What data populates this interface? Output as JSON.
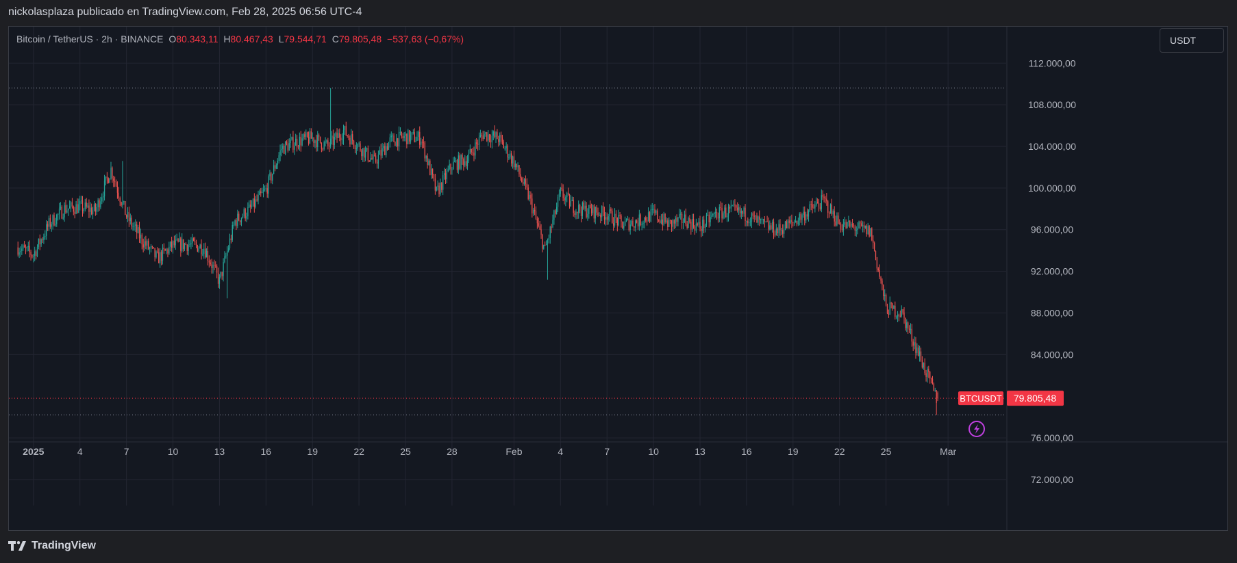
{
  "caption": "nickolasplaza publicado en TradingView.com, Feb 28, 2025 06:56 UTC-4",
  "legend": {
    "symbol": "Bitcoin / TetherUS · 2h · BINANCE",
    "o_label": "O",
    "o_value": "80.343,11",
    "h_label": "H",
    "h_value": "80.467,43",
    "l_label": "L",
    "l_value": "79.544,71",
    "c_label": "C",
    "c_value": "79.805,48",
    "change": "−537,63 (−0,67%)"
  },
  "currency_button": "USDT",
  "price_tag": {
    "ticker": "BTCUSDT",
    "price": "79.805,48"
  },
  "brand": "TradingView",
  "colors": {
    "up": "#26a69a",
    "down": "#ef5350",
    "background": "#141821",
    "grid": "#232632",
    "tag": "#f23645",
    "alert": "#c040e0"
  },
  "icons": {
    "alert": "lightning-icon"
  },
  "chart_data": {
    "type": "candlestick",
    "interval": "2h",
    "y_ticks": [
      {
        "value": 112000,
        "label": "112.000,00"
      },
      {
        "value": 108000,
        "label": "108.000,00"
      },
      {
        "value": 104000,
        "label": "104.000,00"
      },
      {
        "value": 100000,
        "label": "100.000,00"
      },
      {
        "value": 96000,
        "label": "96.000,00"
      },
      {
        "value": 92000,
        "label": "92.000,00"
      },
      {
        "value": 88000,
        "label": "88.000,00"
      },
      {
        "value": 84000,
        "label": "84.000,00"
      },
      {
        "value": 76000,
        "label": "76.000,00"
      },
      {
        "value": 72000,
        "label": "72.000,00"
      }
    ],
    "ylim": [
      69500,
      115500
    ],
    "x_ticks": [
      {
        "date": "2025-01-01",
        "label": "2025",
        "bold": true
      },
      {
        "date": "2025-01-04",
        "label": "4"
      },
      {
        "date": "2025-01-07",
        "label": "7"
      },
      {
        "date": "2025-01-10",
        "label": "10"
      },
      {
        "date": "2025-01-13",
        "label": "13"
      },
      {
        "date": "2025-01-16",
        "label": "16"
      },
      {
        "date": "2025-01-19",
        "label": "19"
      },
      {
        "date": "2025-01-22",
        "label": "22"
      },
      {
        "date": "2025-01-25",
        "label": "25"
      },
      {
        "date": "2025-01-28",
        "label": "28"
      },
      {
        "date": "2025-02-01",
        "label": "Feb"
      },
      {
        "date": "2025-02-04",
        "label": "4"
      },
      {
        "date": "2025-02-07",
        "label": "7"
      },
      {
        "date": "2025-02-10",
        "label": "10"
      },
      {
        "date": "2025-02-13",
        "label": "13"
      },
      {
        "date": "2025-02-16",
        "label": "16"
      },
      {
        "date": "2025-02-19",
        "label": "19"
      },
      {
        "date": "2025-02-22",
        "label": "22"
      },
      {
        "date": "2025-02-25",
        "label": "25"
      },
      {
        "date": "2025-03-01",
        "label": "Mar"
      }
    ],
    "xlim": [
      "2024-12-30T10:00",
      "2025-03-04T18:00"
    ],
    "last_candle": {
      "date": "2025-02-28T06:00",
      "open": 80343.11,
      "high": 80467.43,
      "low": 79544.71,
      "close": 79805.48
    },
    "reference_lines": [
      {
        "value": 109600,
        "style": "dotted"
      },
      {
        "value": 78200,
        "style": "dotted"
      },
      {
        "value": 79805.48,
        "style": "dotted-red"
      }
    ],
    "close_path": [
      [
        "2024-12-31",
        94300
      ],
      [
        "2025-01-01",
        93600
      ],
      [
        "2025-01-02",
        96500
      ],
      [
        "2025-01-03",
        98000
      ],
      [
        "2025-01-04",
        98200
      ],
      [
        "2025-01-05",
        97800
      ],
      [
        "2025-01-06",
        101800
      ],
      [
        "2025-01-07",
        97300
      ],
      [
        "2025-01-08",
        95000
      ],
      [
        "2025-01-09",
        93200
      ],
      [
        "2025-01-10",
        94500
      ],
      [
        "2025-01-11",
        94600
      ],
      [
        "2025-01-12",
        94300
      ],
      [
        "2025-01-13",
        91000
      ],
      [
        "2025-01-14",
        96800
      ],
      [
        "2025-01-15",
        98000
      ],
      [
        "2025-01-16",
        99800
      ],
      [
        "2025-01-17",
        103800
      ],
      [
        "2025-01-18",
        104500
      ],
      [
        "2025-01-19",
        104800
      ],
      [
        "2025-01-20",
        104000
      ],
      [
        "2025-01-21",
        105500
      ],
      [
        "2025-01-22",
        104000
      ],
      [
        "2025-01-23",
        102500
      ],
      [
        "2025-01-24",
        104500
      ],
      [
        "2025-01-25",
        104900
      ],
      [
        "2025-01-26",
        104800
      ],
      [
        "2025-01-27",
        99500
      ],
      [
        "2025-01-28",
        102200
      ],
      [
        "2025-01-29",
        102800
      ],
      [
        "2025-01-30",
        105200
      ],
      [
        "2025-01-31",
        104800
      ],
      [
        "2025-02-01",
        102500
      ],
      [
        "2025-02-02",
        99000
      ],
      [
        "2025-02-03",
        94000
      ],
      [
        "2025-02-04",
        99500
      ],
      [
        "2025-02-05",
        98000
      ],
      [
        "2025-02-06",
        97800
      ],
      [
        "2025-02-07",
        97500
      ],
      [
        "2025-02-08",
        96500
      ],
      [
        "2025-02-09",
        96800
      ],
      [
        "2025-02-10",
        97500
      ],
      [
        "2025-02-11",
        96500
      ],
      [
        "2025-02-12",
        97000
      ],
      [
        "2025-02-13",
        96200
      ],
      [
        "2025-02-14",
        97500
      ],
      [
        "2025-02-15",
        97800
      ],
      [
        "2025-02-16",
        97400
      ],
      [
        "2025-02-17",
        96500
      ],
      [
        "2025-02-18",
        95900
      ],
      [
        "2025-02-19",
        96700
      ],
      [
        "2025-02-20",
        97800
      ],
      [
        "2025-02-21",
        98800
      ],
      [
        "2025-02-22",
        96500
      ],
      [
        "2025-02-23",
        96200
      ],
      [
        "2025-02-24",
        95800
      ],
      [
        "2025-02-25",
        88500
      ],
      [
        "2025-02-26",
        88000
      ],
      [
        "2025-02-27",
        84500
      ],
      [
        "2025-02-28T06:00",
        79805
      ]
    ],
    "extremes": [
      [
        "2025-01-20T04:00",
        "high",
        109600
      ],
      [
        "2025-01-13T12:00",
        "low",
        89400
      ],
      [
        "2025-02-03T04:00",
        "low",
        91200
      ],
      [
        "2025-02-28T06:00",
        "low",
        78200
      ],
      [
        "2025-01-06T18:00",
        "high",
        102600
      ]
    ]
  }
}
